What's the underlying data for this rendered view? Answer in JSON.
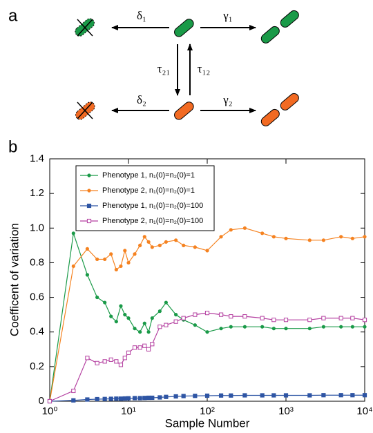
{
  "diagram": {
    "panel_label": "a",
    "labels": {
      "delta1": "δ₁",
      "gamma1": "γ₁",
      "tau21": "τ₂₁",
      "tau12": "τ₁₂",
      "delta2": "δ₂",
      "gamma2": "γ₂"
    }
  },
  "chart_data": {
    "type": "line",
    "panel_label": "b",
    "xlabel": "Sample Number",
    "ylabel": "Coefficent of variation",
    "xscale": "log",
    "xlim": [
      1,
      10000
    ],
    "ylim": [
      0,
      1.4
    ],
    "xticks": [
      {
        "value": 1,
        "label": "10⁰"
      },
      {
        "value": 10,
        "label": "10¹"
      },
      {
        "value": 100,
        "label": "10²"
      },
      {
        "value": 1000,
        "label": "10³"
      },
      {
        "value": 10000,
        "label": "10⁴"
      }
    ],
    "yticks": [
      0,
      0.2,
      0.4,
      0.6,
      0.8,
      {
        "value": 1,
        "label": "1.0"
      },
      1.2,
      1.4
    ],
    "legend": "upper left",
    "x": [
      1,
      2,
      3,
      4,
      5,
      6,
      7,
      8,
      9,
      10,
      12,
      14,
      16,
      18,
      20,
      25,
      30,
      40,
      50,
      70,
      100,
      150,
      200,
      300,
      500,
      700,
      1000,
      2000,
      3000,
      5000,
      7000,
      10000
    ],
    "series": [
      {
        "name": "Phenotype 1, n₁(0)=n₂(0)=1",
        "color": "#1a9a48",
        "marker": "circle",
        "values": [
          0,
          0.97,
          0.73,
          0.6,
          0.57,
          0.49,
          0.46,
          0.55,
          0.5,
          0.48,
          0.42,
          0.4,
          0.45,
          0.4,
          0.48,
          0.52,
          0.57,
          0.5,
          0.47,
          0.44,
          0.4,
          0.42,
          0.43,
          0.43,
          0.43,
          0.42,
          0.42,
          0.42,
          0.43,
          0.43,
          0.43,
          0.43
        ]
      },
      {
        "name": "Phenotype 2, n₁(0)=n₂(0)=1",
        "color": "#f58220",
        "marker": "circle",
        "values": [
          0,
          0.78,
          0.88,
          0.82,
          0.82,
          0.85,
          0.76,
          0.78,
          0.87,
          0.8,
          0.85,
          0.9,
          0.95,
          0.92,
          0.89,
          0.9,
          0.92,
          0.93,
          0.9,
          0.89,
          0.87,
          0.95,
          0.99,
          1.0,
          0.97,
          0.95,
          0.94,
          0.93,
          0.93,
          0.95,
          0.94,
          0.95
        ]
      },
      {
        "name": "Phenotype 1, n₁(0)=n₂(0)=100",
        "color": "#2e55a4",
        "marker": "square",
        "values": [
          0,
          0.005,
          0.01,
          0.012,
          0.013,
          0.014,
          0.015,
          0.015,
          0.016,
          0.017,
          0.018,
          0.018,
          0.019,
          0.02,
          0.02,
          0.022,
          0.025,
          0.028,
          0.03,
          0.031,
          0.032,
          0.033,
          0.033,
          0.034,
          0.034,
          0.034,
          0.034,
          0.034,
          0.035,
          0.035,
          0.035,
          0.035
        ]
      },
      {
        "name": "Phenotype 2, n₁(0)=n₂(0)=100",
        "color": "#b43fa0",
        "marker": "open-square",
        "values": [
          0,
          0.06,
          0.25,
          0.22,
          0.23,
          0.24,
          0.23,
          0.21,
          0.25,
          0.28,
          0.31,
          0.31,
          0.32,
          0.3,
          0.33,
          0.43,
          0.44,
          0.46,
          0.48,
          0.5,
          0.51,
          0.5,
          0.49,
          0.49,
          0.48,
          0.47,
          0.47,
          0.47,
          0.48,
          0.48,
          0.48,
          0.47
        ]
      }
    ]
  }
}
